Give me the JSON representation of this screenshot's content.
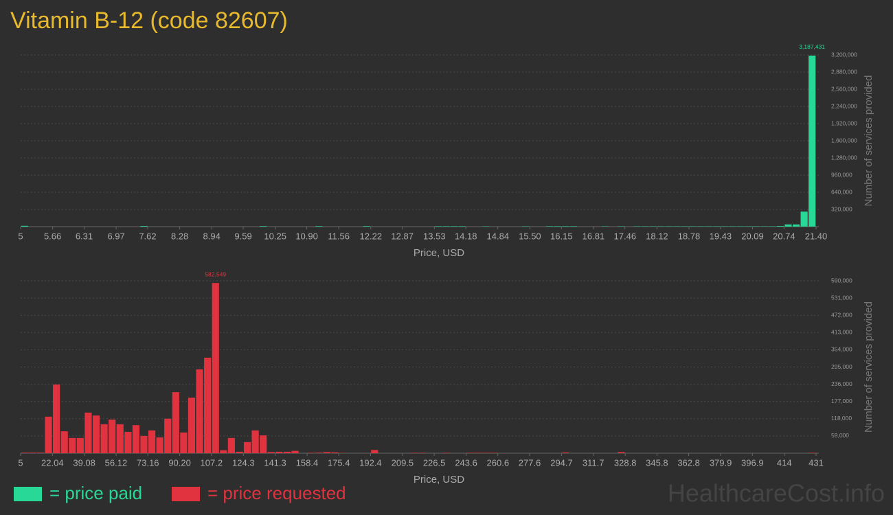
{
  "watermark": "HealthcareCost.info",
  "chart_data": [
    {
      "type": "histogram",
      "title": "Vitamin B-12 (code 82607)",
      "xlabel": "Price, USD",
      "ylabel": "Number of services provided",
      "grid": true,
      "bins": [
        5,
        5.164,
        5.328,
        5.492,
        5.656,
        5.82,
        5.984,
        6.148,
        6.312,
        6.476,
        6.64,
        6.804,
        6.968,
        7.132,
        7.296,
        7.46,
        7.624,
        7.788,
        7.952,
        8.116,
        8.28,
        8.444,
        8.608,
        8.772,
        8.936,
        9.1,
        9.264,
        9.428,
        9.592,
        9.756,
        9.92,
        10.084,
        10.248,
        10.412,
        10.576,
        10.74,
        10.904,
        11.068,
        11.232,
        11.396,
        11.56,
        11.724,
        11.888,
        12.052,
        12.216,
        12.38,
        12.544,
        12.708,
        12.872,
        13.036,
        13.2,
        13.364,
        13.528,
        13.692,
        13.856,
        14.02,
        14.184,
        14.348,
        14.512,
        14.676,
        14.84,
        15.004,
        15.168,
        15.332,
        15.496,
        15.66,
        15.824,
        15.988,
        16.152,
        16.316,
        16.48,
        16.644,
        16.808,
        16.972,
        17.136,
        17.3,
        17.464,
        17.628,
        17.792,
        17.956,
        18.12,
        18.284,
        18.448,
        18.612,
        18.776,
        18.94,
        19.104,
        19.268,
        19.432,
        19.596,
        19.76,
        19.924,
        20.088,
        20.252,
        20.416,
        20.58,
        20.744,
        20.908,
        21.072,
        21.236,
        21.4
      ],
      "series": [
        {
          "name": "= price paid",
          "color": "#28d896",
          "values": [
            15000,
            0,
            0,
            0,
            0,
            0,
            0,
            0,
            0,
            0,
            0,
            0,
            0,
            0,
            0,
            12000,
            0,
            0,
            0,
            0,
            0,
            0,
            0,
            0,
            0,
            0,
            0,
            0,
            0,
            0,
            10000,
            0,
            0,
            0,
            0,
            0,
            0,
            10000,
            0,
            0,
            0,
            0,
            0,
            10000,
            0,
            0,
            0,
            0,
            0,
            0,
            0,
            0,
            8000,
            8000,
            8000,
            8000,
            0,
            0,
            6000,
            0,
            0,
            0,
            0,
            6000,
            0,
            0,
            8000,
            8000,
            8000,
            8000,
            0,
            0,
            0,
            6000,
            0,
            6000,
            0,
            6000,
            6000,
            6000,
            6000,
            6000,
            6000,
            6000,
            6000,
            6000,
            6000,
            6000,
            6000,
            6000,
            6000,
            6000,
            6000,
            6000,
            6000,
            12000,
            40000,
            40000,
            280000,
            3187431
          ],
          "value_labels": [
            null,
            null,
            null,
            null,
            null,
            null,
            null,
            null,
            null,
            null,
            null,
            null,
            null,
            null,
            null,
            null,
            null,
            null,
            null,
            null,
            null,
            null,
            null,
            null,
            null,
            null,
            null,
            null,
            null,
            null,
            null,
            null,
            null,
            null,
            null,
            null,
            null,
            null,
            null,
            null,
            null,
            null,
            null,
            null,
            null,
            null,
            null,
            null,
            null,
            null,
            null,
            null,
            null,
            null,
            null,
            null,
            null,
            null,
            null,
            null,
            null,
            null,
            null,
            null,
            null,
            null,
            null,
            null,
            null,
            null,
            null,
            null,
            null,
            null,
            null,
            null,
            null,
            null,
            null,
            null,
            null,
            null,
            null,
            null,
            null,
            null,
            null,
            null,
            null,
            null,
            null,
            null,
            null,
            null,
            null,
            null,
            null,
            null,
            null,
            "3,187,431"
          ]
        }
      ],
      "xlim": [
        5,
        21.4
      ],
      "xticks": [
        5,
        5.66,
        6.31,
        6.97,
        7.62,
        8.28,
        8.94,
        9.59,
        10.25,
        {
          "value": 10.9,
          "label": "10.90"
        },
        11.56,
        12.22,
        12.87,
        13.53,
        14.18,
        14.84,
        {
          "value": 15.5,
          "label": "15.50"
        },
        16.15,
        16.81,
        17.46,
        18.12,
        18.78,
        19.43,
        20.09,
        20.74,
        {
          "value": 21.4,
          "label": "21.40"
        }
      ],
      "ylim": [
        0,
        3200000
      ],
      "yticks": [
        {
          "value": 320000,
          "label": "320,000"
        },
        {
          "value": 640000,
          "label": "640,000"
        },
        {
          "value": 960000,
          "label": "960,000"
        },
        {
          "value": 1280000,
          "label": "1,280,000"
        },
        {
          "value": 1600000,
          "label": "1,600,000"
        },
        {
          "value": 1920000,
          "label": "1,920,000"
        },
        {
          "value": 2240000,
          "label": "2,240,000"
        },
        {
          "value": 2560000,
          "label": "2,560,000"
        },
        {
          "value": 2880000,
          "label": "2,880,000"
        },
        {
          "value": 3200000,
          "label": "3,200,000"
        }
      ]
    },
    {
      "type": "histogram",
      "xlabel": "Price, USD",
      "ylabel": "Number of services provided",
      "grid": true,
      "bins": [
        5,
        9.26,
        13.52,
        17.78,
        22.04,
        26.3,
        30.56,
        34.82,
        39.08,
        43.34,
        47.6,
        51.86,
        56.12,
        60.38,
        64.64,
        68.9,
        73.16,
        77.42,
        81.68,
        85.94,
        90.2,
        94.46,
        98.72,
        102.98,
        107.24,
        111.5,
        115.76,
        120.02,
        124.28,
        128.54,
        132.8,
        137.06,
        141.32,
        145.58,
        149.84,
        154.1,
        158.36,
        162.62,
        166.88,
        171.14,
        175.4,
        179.66,
        183.92,
        188.18,
        192.44,
        196.7,
        200.96,
        205.22,
        209.48,
        213.74,
        218,
        222.26,
        226.52,
        230.78,
        235.04,
        239.3,
        243.56,
        247.82,
        252.08,
        256.34,
        260.6,
        264.86,
        269.12,
        273.38,
        277.64,
        281.9,
        286.16,
        290.42,
        294.68,
        298.94,
        303.2,
        307.46,
        311.72,
        315.98,
        320.24,
        324.5,
        328.76,
        333.02,
        337.28,
        341.54,
        345.8,
        350.06,
        354.32,
        358.58,
        362.84,
        367.1,
        371.36,
        375.62,
        379.88,
        384.14,
        388.4,
        392.66,
        396.92,
        401.18,
        405.44,
        409.7,
        413.96,
        418.22,
        422.48,
        426.74,
        431
      ],
      "series": [
        {
          "name": "= price requested",
          "color": "#e0323f",
          "values": [
            2000,
            2000,
            2000,
            125000,
            235000,
            75000,
            52000,
            52000,
            139000,
            129000,
            99000,
            115000,
            99000,
            73000,
            96000,
            59000,
            78000,
            54000,
            118000,
            209000,
            71000,
            190000,
            287000,
            327000,
            582549,
            10000,
            52000,
            5000,
            38000,
            78000,
            61000,
            4000,
            5000,
            5000,
            8000,
            0,
            1500,
            2000,
            4000,
            3000,
            1000,
            0,
            0,
            0,
            11000,
            0,
            0,
            0,
            0,
            1500,
            1500,
            0,
            0,
            1500,
            0,
            0,
            1500,
            1500,
            1500,
            1500,
            0,
            0,
            0,
            0,
            0,
            0,
            0,
            0,
            2500,
            0,
            0,
            0,
            0,
            0,
            0,
            4000,
            0,
            0,
            0,
            0,
            0,
            0,
            0,
            0,
            0,
            0,
            0,
            0,
            0,
            0,
            0,
            0,
            0,
            0,
            0,
            0,
            0,
            0,
            0,
            1500
          ],
          "value_labels": [
            null,
            null,
            null,
            null,
            null,
            null,
            null,
            null,
            null,
            null,
            null,
            null,
            null,
            null,
            null,
            null,
            null,
            null,
            null,
            null,
            null,
            null,
            null,
            null,
            "582,549",
            null,
            null,
            null,
            null,
            null,
            null,
            null,
            null,
            null,
            null,
            null,
            null,
            null,
            null,
            null,
            null,
            null,
            null,
            null,
            null,
            null,
            null,
            null,
            null,
            null,
            null,
            null,
            null,
            null,
            null,
            null,
            null,
            null,
            null,
            null,
            null,
            null,
            null,
            null,
            null,
            null,
            null,
            null,
            null,
            null,
            null,
            null,
            null,
            null,
            null,
            null,
            null,
            null,
            null,
            null,
            null,
            null,
            null,
            null,
            null,
            null,
            null,
            null,
            null,
            null,
            null,
            null,
            null,
            null,
            null,
            null,
            null,
            null,
            null,
            null
          ]
        }
      ],
      "xlim": [
        5,
        431
      ],
      "xticks": [
        5,
        22.04,
        39.08,
        56.12,
        73.16,
        {
          "value": 90.2,
          "label": "90.20"
        },
        107.2,
        124.3,
        141.3,
        158.4,
        175.4,
        192.4,
        209.5,
        226.5,
        243.6,
        260.6,
        277.6,
        294.7,
        311.7,
        328.8,
        345.8,
        362.8,
        379.9,
        396.9,
        414,
        431
      ],
      "ylim": [
        0,
        590000
      ],
      "yticks": [
        {
          "value": 59000,
          "label": "59,000"
        },
        {
          "value": 118000,
          "label": "118,000"
        },
        {
          "value": 177000,
          "label": "177,000"
        },
        {
          "value": 236000,
          "label": "236,000"
        },
        {
          "value": 295000,
          "label": "295,000"
        },
        {
          "value": 354000,
          "label": "354,000"
        },
        {
          "value": 413000,
          "label": "413,000"
        },
        {
          "value": 472000,
          "label": "472,000"
        },
        {
          "value": 531000,
          "label": "531,000"
        },
        {
          "value": 590000,
          "label": "590,000"
        }
      ]
    }
  ]
}
